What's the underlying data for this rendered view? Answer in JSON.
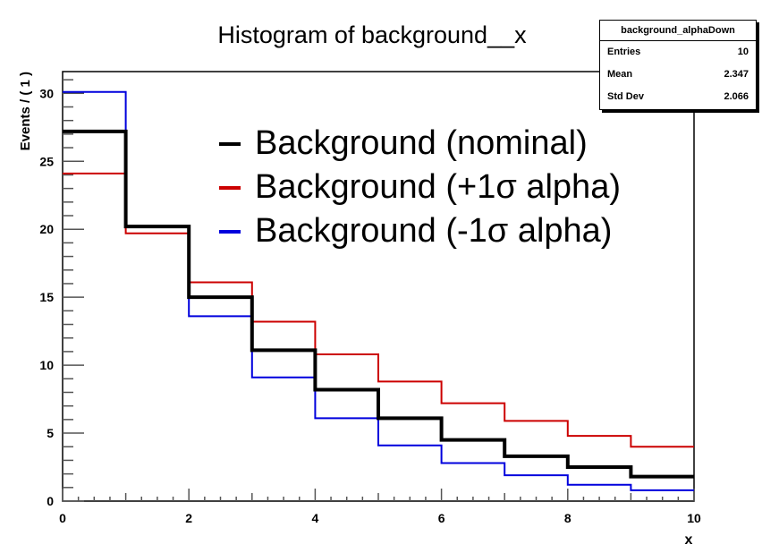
{
  "chart_data": {
    "type": "line",
    "title": "Histogram of background__x",
    "xlabel": "x",
    "ylabel": "Events / ( 1 )",
    "xlim": [
      0,
      10
    ],
    "ylim": [
      0,
      31.6
    ],
    "x_bin_edges": [
      0,
      1,
      2,
      3,
      4,
      5,
      6,
      7,
      8,
      9,
      10
    ],
    "x_ticks": [
      "0",
      "2",
      "4",
      "6",
      "8",
      "10"
    ],
    "y_ticks": [
      "0",
      "5",
      "10",
      "15",
      "20",
      "25",
      "30"
    ],
    "series": [
      {
        "name": "Background (nominal)",
        "color": "#000000",
        "values": [
          27.2,
          20.2,
          15.0,
          11.1,
          8.2,
          6.1,
          4.5,
          3.3,
          2.5,
          1.8
        ]
      },
      {
        "name": "Background (+1σ alpha)",
        "color": "#cc0000",
        "values": [
          24.1,
          19.7,
          16.1,
          13.2,
          10.8,
          8.8,
          7.2,
          5.9,
          4.8,
          4.0
        ]
      },
      {
        "name": "Background (-1σ alpha)",
        "color": "#0000dd",
        "values": [
          30.1,
          20.2,
          13.6,
          9.1,
          6.1,
          4.1,
          2.8,
          1.9,
          1.2,
          0.8
        ]
      }
    ],
    "legend_position": "top-right",
    "stats": {
      "name": "background_alphaDown",
      "rows": [
        {
          "label": "Entries",
          "value": "10"
        },
        {
          "label": "Mean",
          "value": "2.347"
        },
        {
          "label": "Std Dev",
          "value": "2.066"
        }
      ]
    }
  }
}
